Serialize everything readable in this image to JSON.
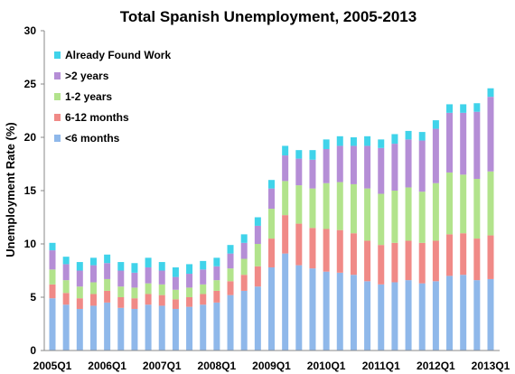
{
  "chart_data": {
    "type": "bar",
    "stacked": true,
    "title": "Total Spanish Unemployment, 2005-2013",
    "xlabel": "",
    "ylabel": "Unemployment Rate (%)",
    "ylim": [
      0,
      30
    ],
    "yticks": [
      "0",
      "5",
      "10",
      "15",
      "20",
      "25",
      "30"
    ],
    "grid": false,
    "legend_position": "top-left",
    "categories": [
      "2005Q1",
      "2005Q2",
      "2005Q3",
      "2005Q4",
      "2006Q1",
      "2006Q2",
      "2006Q3",
      "2006Q4",
      "2007Q1",
      "2007Q2",
      "2007Q3",
      "2007Q4",
      "2008Q1",
      "2008Q2",
      "2008Q3",
      "2008Q4",
      "2009Q1",
      "2009Q2",
      "2009Q3",
      "2009Q4",
      "2010Q1",
      "2010Q2",
      "2010Q3",
      "2010Q4",
      "2011Q1",
      "2011Q2",
      "2011Q3",
      "2011Q4",
      "2012Q1",
      "2012Q2",
      "2012Q3",
      "2012Q4",
      "2013Q1"
    ],
    "xtick_labels": [
      {
        "index": 0,
        "label": "2005Q1"
      },
      {
        "index": 4,
        "label": "2006Q1"
      },
      {
        "index": 8,
        "label": "2007Q1"
      },
      {
        "index": 12,
        "label": "2008Q1"
      },
      {
        "index": 16,
        "label": "2009Q1"
      },
      {
        "index": 20,
        "label": "2010Q1"
      },
      {
        "index": 24,
        "label": "2011Q1"
      },
      {
        "index": 28,
        "label": "2012Q1"
      },
      {
        "index": 32,
        "label": "2013Q1"
      }
    ],
    "series": [
      {
        "name": "<6 months",
        "color": "#8fb8ea",
        "values": [
          4.9,
          4.3,
          3.9,
          4.2,
          4.5,
          4.0,
          3.9,
          4.3,
          4.2,
          3.9,
          4.1,
          4.3,
          4.5,
          5.2,
          5.6,
          6.0,
          7.8,
          9.1,
          8.0,
          7.7,
          7.4,
          7.3,
          7.1,
          6.5,
          6.2,
          6.4,
          6.6,
          6.3,
          6.5,
          7.0,
          7.1,
          6.6,
          6.7
        ]
      },
      {
        "name": "6-12 months",
        "color": "#f08a87",
        "values": [
          1.3,
          1.1,
          1.0,
          1.1,
          1.1,
          1.0,
          1.0,
          1.0,
          1.0,
          0.9,
          0.9,
          1.0,
          1.1,
          1.3,
          1.5,
          1.9,
          2.7,
          3.6,
          3.9,
          3.8,
          4.0,
          4.0,
          3.9,
          3.8,
          3.7,
          3.7,
          3.7,
          3.8,
          3.8,
          3.9,
          3.9,
          3.9,
          4.1
        ]
      },
      {
        "name": "1-2 years",
        "color": "#b2e38c",
        "values": [
          1.4,
          1.2,
          1.1,
          1.1,
          1.1,
          1.0,
          1.0,
          1.0,
          1.0,
          0.9,
          0.9,
          0.9,
          1.0,
          1.2,
          1.5,
          2.1,
          2.8,
          3.2,
          3.6,
          3.7,
          4.3,
          4.5,
          4.6,
          4.9,
          4.8,
          4.9,
          5.0,
          4.8,
          5.4,
          5.8,
          5.5,
          5.6,
          6.0
        ]
      },
      {
        "name": ">2 years",
        "color": "#b58ed6",
        "values": [
          1.8,
          1.5,
          1.5,
          1.6,
          1.5,
          1.5,
          1.4,
          1.5,
          1.3,
          1.2,
          1.3,
          1.4,
          1.3,
          1.4,
          1.5,
          1.7,
          1.9,
          2.4,
          2.5,
          2.7,
          3.2,
          3.4,
          3.6,
          4.0,
          4.3,
          4.4,
          4.5,
          4.8,
          5.1,
          5.6,
          5.8,
          6.3,
          7.0
        ]
      },
      {
        "name": "Already Found Work",
        "color": "#40d3ea",
        "values": [
          0.7,
          0.7,
          0.8,
          0.7,
          0.8,
          0.8,
          0.9,
          0.9,
          0.8,
          0.9,
          0.9,
          0.8,
          0.8,
          0.8,
          0.8,
          0.8,
          0.8,
          0.9,
          0.8,
          0.9,
          0.9,
          0.9,
          0.8,
          0.9,
          0.8,
          0.9,
          0.8,
          0.8,
          0.8,
          0.8,
          0.8,
          0.8,
          0.8
        ]
      }
    ],
    "legend_order": [
      4,
      3,
      2,
      1,
      0
    ]
  }
}
